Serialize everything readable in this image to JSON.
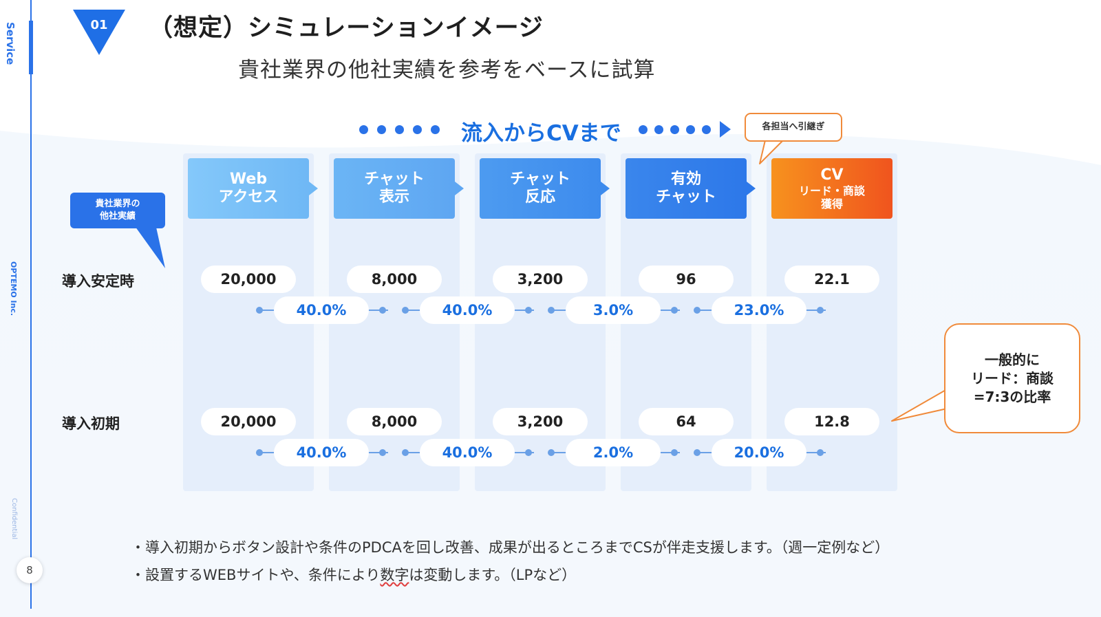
{
  "sidebar": {
    "section": "Service",
    "company": "OPTEMO Inc.",
    "confidential": "Confidential",
    "page_number": "8"
  },
  "header": {
    "badge": "01",
    "title": "（想定）シミュレーションイメージ",
    "subtitle": "貴社業界の他社実績を参考をベースに試算"
  },
  "flow": {
    "heading": "流入からCVまで",
    "handoff_note": "各担当へ引継ぎ",
    "stages": [
      {
        "line1": "Web",
        "line2": "アクセス",
        "color_start": "#84c8fa",
        "color_end": "#6fb8f5"
      },
      {
        "line1": "チャット",
        "line2": "表示",
        "color_start": "#6bb5f5",
        "color_end": "#5ea6f2"
      },
      {
        "line1": "チャット",
        "line2": "反応",
        "color_start": "#4d9bf0",
        "color_end": "#3d8bed"
      },
      {
        "line1": "有効",
        "line2": "チャット",
        "color_start": "#3a86ec",
        "color_end": "#2d78e9"
      },
      {
        "line1": "CV",
        "line2": "リード・商談",
        "line3": "獲得",
        "color_start": "#f7921e",
        "color_end": "#f0541e"
      }
    ]
  },
  "source_tag": {
    "line1": "貴社業界の",
    "line2": "他社実績"
  },
  "rows": [
    {
      "label": "導入安定時",
      "values": [
        "20,000",
        "8,000",
        "3,200",
        "96",
        "22.1"
      ],
      "rates": [
        "40.0%",
        "40.0%",
        "3.0%",
        "23.0%"
      ]
    },
    {
      "label": "導入初期",
      "values": [
        "20,000",
        "8,000",
        "3,200",
        "64",
        "12.8"
      ],
      "rates": [
        "40.0%",
        "40.0%",
        "2.0%",
        "20.0%"
      ]
    }
  ],
  "ratio_callout": {
    "line1": "一般的に",
    "line2": "リード：商談",
    "line3": "=7:3の比率"
  },
  "notes": {
    "note1": "・導入初期からボタン設計や条件のPDCAを回し改善、成果が出るところまでCSが伴走支援します。（週一定例など）",
    "note2_pre": "・設置するWEBサイトや、条件により",
    "note2_mark": "数字",
    "note2_post": "は変動します。（LPなど）"
  },
  "colors": {
    "accent": "#2a72e8",
    "rate_text": "#1a6fe0",
    "callout_border": "#f08a3a",
    "column_bg": "#e5eefb"
  }
}
